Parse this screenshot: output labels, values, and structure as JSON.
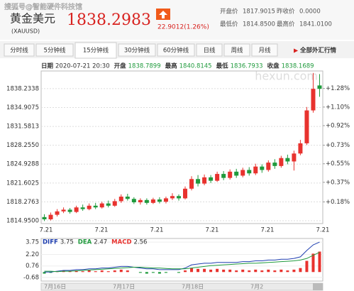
{
  "header": {
    "watermark": "搜狐号@智能硬件科技馆",
    "name": "黄金美元",
    "code": "(XAUUSD)",
    "price": "1838.2983",
    "change": "22.9012(1.26%)",
    "stats": [
      {
        "label": "开盘价",
        "value": "1817.9015"
      },
      {
        "label": "昨收价",
        "value": "0.0000"
      },
      {
        "label": "最低价",
        "value": "1814.8500"
      },
      {
        "label": "最高价",
        "value": "1841.0100"
      }
    ]
  },
  "tabs": {
    "items": [
      "分时线",
      "5分钟线",
      "15分钟线",
      "30分钟线",
      "60分钟线",
      "日线",
      "周线",
      "月线"
    ],
    "selected": 2,
    "all": "全部外汇行情"
  },
  "info": [
    {
      "label": "日期",
      "value": "2020-07-21 20:30"
    },
    {
      "label": "开盘",
      "value": "1838.7899"
    },
    {
      "label": "最高",
      "value": "1840.8145"
    },
    {
      "label": "最低",
      "value": "1836.7933"
    },
    {
      "label": "收盘",
      "value": "1838.1689"
    }
  ],
  "brand": "hexun.com",
  "datebar": [
    "7月16日",
    "7月17日",
    "7月18日",
    "7月2"
  ],
  "chart_data": [
    {
      "type": "candlestick",
      "up_color": "#e8322e",
      "down_color": "#1f9a3c",
      "xlabels": [
        "7.21",
        "7.21",
        "7.21",
        "7.21",
        "7.21",
        "7.21"
      ],
      "open": [
        1815.6,
        1815.2,
        1816.0,
        1816.6,
        1816.9,
        1816.5,
        1817.3,
        1817.0,
        1817.6,
        1817.3,
        1818.0,
        1817.6,
        1818.4,
        1819.2,
        1818.8,
        1818.2,
        1818.6,
        1818.1,
        1818.7,
        1818.3,
        1818.9,
        1819.3,
        1818.9,
        1820.6,
        1822.3,
        1821.5,
        1822.6,
        1822.0,
        1823.2,
        1822.5,
        1823.6,
        1822.9,
        1823.9,
        1823.3,
        1824.5,
        1823.9,
        1825.2,
        1824.6,
        1826.0,
        1825.4,
        1826.8,
        1828.6,
        1834.4,
        1838.8
      ],
      "close": [
        1815.2,
        1816.0,
        1816.6,
        1816.9,
        1816.5,
        1817.3,
        1817.0,
        1817.6,
        1817.3,
        1818.0,
        1817.6,
        1818.4,
        1819.2,
        1818.8,
        1818.2,
        1818.6,
        1818.1,
        1818.7,
        1818.3,
        1818.9,
        1819.3,
        1818.9,
        1820.6,
        1822.3,
        1821.5,
        1822.6,
        1822.0,
        1823.2,
        1822.5,
        1823.6,
        1822.9,
        1823.9,
        1823.3,
        1824.5,
        1823.9,
        1825.2,
        1824.6,
        1826.0,
        1825.4,
        1826.8,
        1828.6,
        1834.4,
        1838.2,
        1838.2
      ],
      "high": [
        1816.1,
        1816.4,
        1817.0,
        1817.3,
        1817.2,
        1817.6,
        1817.8,
        1818.0,
        1818.1,
        1818.3,
        1818.5,
        1818.8,
        1819.6,
        1819.7,
        1819.1,
        1818.9,
        1818.9,
        1819.0,
        1819.1,
        1819.2,
        1819.8,
        1819.6,
        1821.0,
        1822.8,
        1823.0,
        1823.1,
        1823.0,
        1823.6,
        1823.7,
        1824.0,
        1824.1,
        1824.3,
        1824.4,
        1825.0,
        1824.9,
        1825.6,
        1825.8,
        1826.4,
        1826.6,
        1827.3,
        1829.2,
        1835.0,
        1841.0,
        1840.8
      ],
      "low": [
        1814.9,
        1815.0,
        1815.7,
        1816.3,
        1816.2,
        1816.3,
        1816.7,
        1816.8,
        1817.0,
        1817.1,
        1817.3,
        1817.4,
        1818.1,
        1818.5,
        1817.9,
        1817.8,
        1817.8,
        1817.9,
        1818.0,
        1818.0,
        1818.6,
        1818.5,
        1818.7,
        1820.3,
        1821.0,
        1821.2,
        1821.6,
        1821.8,
        1822.1,
        1822.2,
        1822.5,
        1822.6,
        1822.9,
        1823.0,
        1823.4,
        1823.6,
        1824.1,
        1824.3,
        1824.9,
        1823.8,
        1826.5,
        1828.3,
        1834.0,
        1836.8
      ],
      "ylim": [
        1814.45,
        1841.35
      ],
      "yticks": [
        1838.2338,
        1834.9075,
        1831.5813,
        {
          "value": 1828.255,
          "label": "1828.2550"
        },
        1824.9288,
        1821.6025,
        1818.2763,
        {
          "value": 1814.95,
          "label": "1814.9500"
        }
      ],
      "y2lim": [
        -0.03,
        1.45
      ],
      "y2ticks": [
        {
          "value": 1.28,
          "label": "+1.28%"
        },
        {
          "value": 1.1,
          "label": "+1.10%"
        },
        {
          "value": 0.92,
          "label": "+0.92%"
        },
        {
          "value": 0.73,
          "label": "+0.73%"
        },
        {
          "value": 0.55,
          "label": "+0.55%"
        },
        {
          "value": 0.37,
          "label": "+0.37%"
        },
        {
          "value": 0.18,
          "label": "+0.18%"
        }
      ],
      "grid": true
    },
    {
      "type": "macd",
      "ylim": [
        -1.13,
        4.2
      ],
      "yticks": [
        3.75,
        {
          "value": 2.2,
          "label": "2.20"
        },
        0.76,
        -0.68
      ],
      "series": [
        {
          "name": "DIFF",
          "color": "#1f3fb0",
          "values": [
            0,
            0,
            0.1,
            0.2,
            0.2,
            0.3,
            0.3,
            0.4,
            0.4,
            0.5,
            0.5,
            0.6,
            0.7,
            0.7,
            0.6,
            0.5,
            0.4,
            0.4,
            0.3,
            0.3,
            0.3,
            0.3,
            0.5,
            0.9,
            1.0,
            1.1,
            1.1,
            1.2,
            1.2,
            1.2,
            1.2,
            1.3,
            1.3,
            1.4,
            1.4,
            1.5,
            1.5,
            1.6,
            1.6,
            1.7,
            1.9,
            2.7,
            3.4,
            3.75
          ]
        },
        {
          "name": "DEA",
          "color": "#1f9a3c",
          "values": [
            0.1,
            0.1,
            0.05,
            0.1,
            0.1,
            0.15,
            0.2,
            0.25,
            0.3,
            0.35,
            0.4,
            0.45,
            0.5,
            0.55,
            0.6,
            0.6,
            0.55,
            0.5,
            0.5,
            0.45,
            0.4,
            0.4,
            0.4,
            0.5,
            0.6,
            0.7,
            0.8,
            0.85,
            0.9,
            0.95,
            1.0,
            1.05,
            1.1,
            1.1,
            1.15,
            1.2,
            1.25,
            1.3,
            1.35,
            1.4,
            1.5,
            1.7,
            2.1,
            2.47
          ]
        },
        {
          "name": "MACD",
          "color": "#e8322e",
          "values": [
            -0.2,
            -0.1,
            0.1,
            0.2,
            0.1,
            0.2,
            0.1,
            0.2,
            0.1,
            0.2,
            0.1,
            0.2,
            0.3,
            0.2,
            0,
            -0.1,
            -0.2,
            -0.1,
            -0.2,
            -0.1,
            0,
            -0.1,
            0.2,
            0.5,
            0.4,
            0.4,
            0.3,
            0.4,
            0.3,
            0.3,
            0.2,
            0.3,
            0.2,
            0.3,
            0.2,
            0.3,
            0.2,
            0.3,
            0.2,
            0.3,
            0.5,
            1.4,
            2.3,
            2.56
          ]
        }
      ]
    }
  ]
}
